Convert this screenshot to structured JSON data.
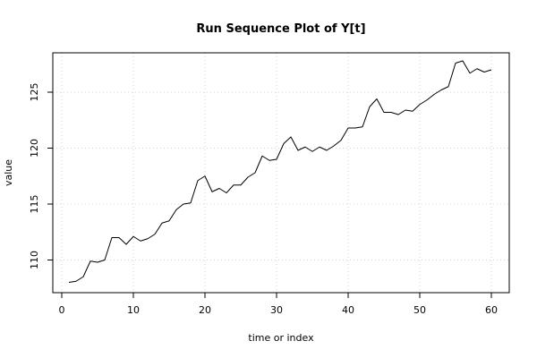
{
  "chart_data": {
    "type": "line",
    "title": "Run Sequence Plot of Y[t]",
    "xlabel": "time or index",
    "ylabel": "value",
    "xlim": [
      0,
      60
    ],
    "ylim": [
      107.5,
      128
    ],
    "xticks": [
      0,
      10,
      20,
      30,
      40,
      50,
      60
    ],
    "yticks": [
      110,
      115,
      120,
      125
    ],
    "grid": true,
    "line_color": "#000000",
    "grid_color": "#d3d3d3",
    "series": [
      {
        "x": [
          1,
          2,
          3,
          4,
          5,
          6,
          7,
          8,
          9,
          10,
          11,
          12,
          13,
          14,
          15,
          16,
          17,
          18,
          19,
          20,
          21,
          22,
          23,
          24,
          25,
          26,
          27,
          28,
          29,
          30,
          31,
          32,
          33,
          34,
          35,
          36,
          37,
          38,
          39,
          40,
          41,
          42,
          43,
          44,
          45,
          46,
          47,
          48,
          49,
          50,
          51,
          52,
          53,
          54,
          55,
          56,
          57,
          58,
          59,
          60
        ],
        "values": [
          108.0,
          108.1,
          108.5,
          109.9,
          109.8,
          110.0,
          112.0,
          112.0,
          111.4,
          112.1,
          111.7,
          111.9,
          112.3,
          113.3,
          113.5,
          114.5,
          115.0,
          115.1,
          117.1,
          117.5,
          116.1,
          116.4,
          116.0,
          116.7,
          116.7,
          117.4,
          117.8,
          119.3,
          118.9,
          119.0,
          120.4,
          121.0,
          119.8,
          120.1,
          119.7,
          120.1,
          119.8,
          120.2,
          120.7,
          121.8,
          121.8,
          121.9,
          123.7,
          124.4,
          123.2,
          123.2,
          123.0,
          123.4,
          123.3,
          123.9,
          124.3,
          124.8,
          125.2,
          125.5,
          127.6,
          127.8,
          126.7,
          127.1,
          126.8,
          127.0
        ]
      }
    ]
  }
}
